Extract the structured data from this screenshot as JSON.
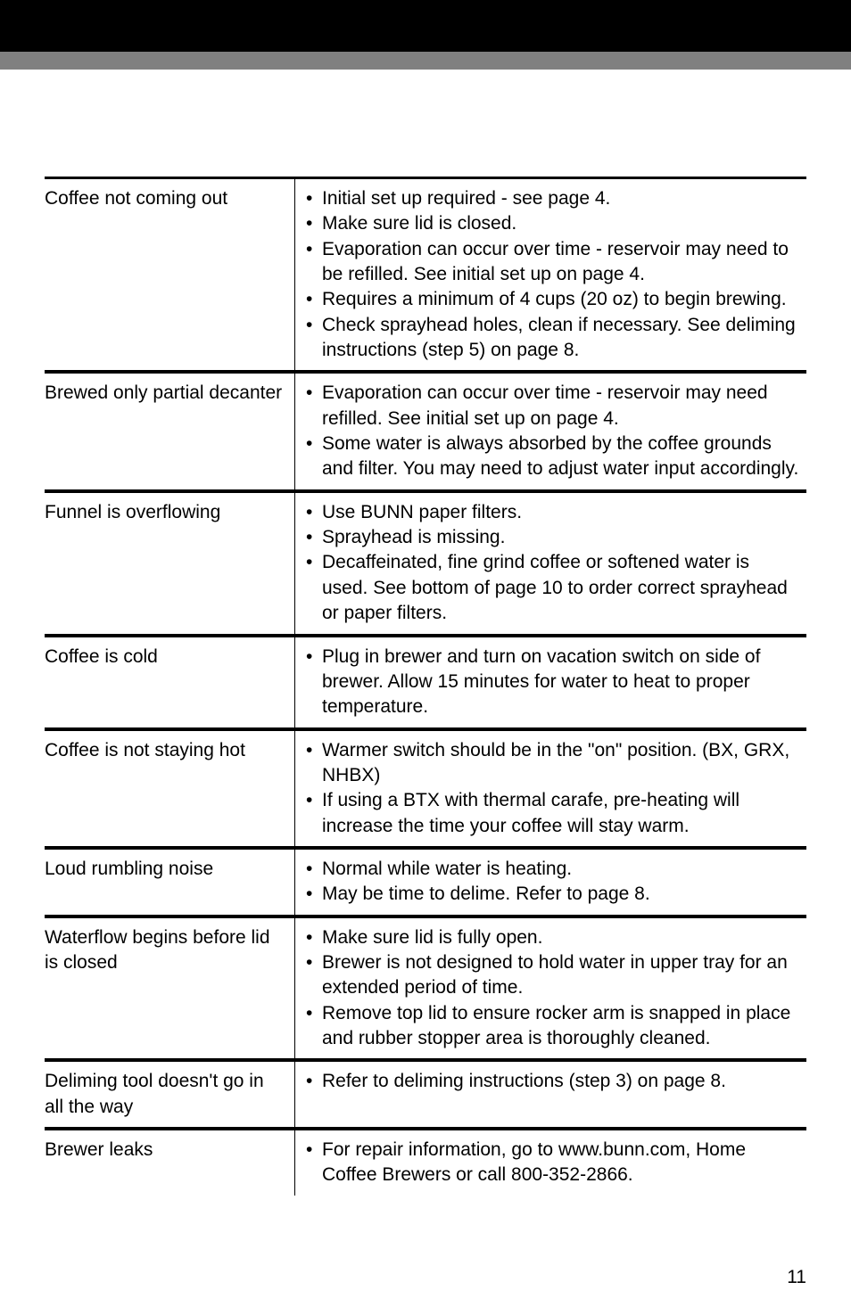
{
  "header": {
    "top_band_color": "#000000",
    "gray_band_color": "#808080"
  },
  "rows": [
    {
      "problem": "Coffee not coming out",
      "solutions": [
        "Initial set up required - see page 4.",
        "Make sure lid is closed.",
        "Evaporation can occur over time - reservoir may need to be refilled.  See initial set up on page 4.",
        "Requires a minimum of 4 cups (20 oz) to begin brewing.",
        "Check sprayhead holes, clean if necessary. See deliming instructions (step 5) on page 8."
      ]
    },
    {
      "problem": "Brewed only partial decanter",
      "solutions": [
        "Evaporation can occur over time - reservoir may need refilled.  See initial set up on page 4.",
        "Some water is always absorbed by the coffee grounds and filter. You may need to adjust water input accordingly."
      ]
    },
    {
      "problem": "Funnel is overflowing",
      "solutions": [
        "Use BUNN paper filters.",
        "Sprayhead is missing.",
        "Decaffeinated, fine grind coffee or softened water is used. See bottom of page 10 to order correct sprayhead or paper filters."
      ]
    },
    {
      "problem": "Coffee is cold",
      "solutions": [
        "Plug in brewer and turn on vacation switch on side of brewer. Allow 15 minutes for water to heat to proper temperature."
      ]
    },
    {
      "problem": "Coffee is not staying hot",
      "solutions": [
        "Warmer switch should be in the \"on\" position. (BX, GRX, NHBX)",
        "If using a BTX with thermal carafe, pre-heating will increase the time your coffee will stay warm."
      ]
    },
    {
      "problem": "Loud rumbling noise",
      "solutions": [
        "Normal while water is heating.",
        "May be time to delime. Refer to page 8."
      ]
    },
    {
      "problem": "Waterflow begins before lid is closed",
      "solutions": [
        "Make sure lid is fully open.",
        "Brewer is not designed to hold water in upper tray for an extended period of time.",
        "Remove top lid to ensure rocker arm is snapped in place and rubber stopper area is thoroughly cleaned."
      ]
    },
    {
      "problem": "Deliming tool doesn't go in all the way",
      "solutions": [
        "Refer to deliming instructions (step 3) on page 8."
      ]
    },
    {
      "problem": "Brewer leaks",
      "solutions": [
        "For repair information, go to www.bunn.com, Home Coffee Brewers or call 800-352-2866."
      ]
    }
  ],
  "page_number": "11",
  "typography": {
    "body_font_size": 21,
    "font_family": "Arial, Helvetica, sans-serif",
    "text_color": "#000000"
  },
  "table_style": {
    "row_top_border_width": 3,
    "row_bottom_border_width": 1,
    "divider_border_width": 1,
    "border_color": "#000000",
    "problem_col_width": 280
  }
}
